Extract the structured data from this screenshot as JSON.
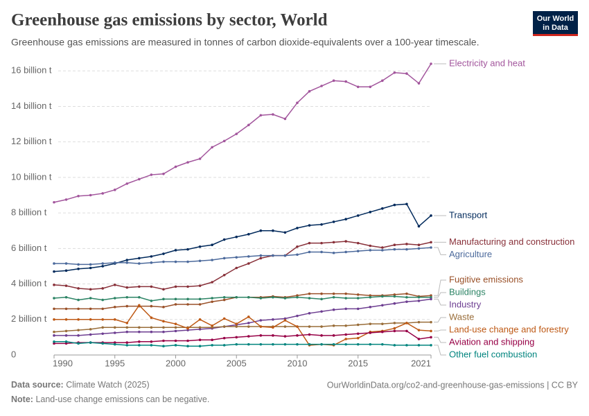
{
  "chart_data": {
    "type": "line",
    "title": "Greenhouse gas emissions by sector, World",
    "subtitle": "Greenhouse gas emissions are measured in tonnes of carbon dioxide-equivalents over a 100-year timescale.",
    "logo": [
      "Our World",
      "in Data"
    ],
    "source_label": "Data source:",
    "source": "Climate Watch (2025)",
    "url": "OurWorldinData.org/co2-and-greenhouse-gas-emissions | CC BY",
    "note_label": "Note:",
    "note": "Land-use change emissions can be negative.",
    "grid": true,
    "x": [
      1990,
      1991,
      1992,
      1993,
      1994,
      1995,
      1996,
      1997,
      1998,
      1999,
      2000,
      2001,
      2002,
      2003,
      2004,
      2005,
      2006,
      2007,
      2008,
      2009,
      2010,
      2011,
      2012,
      2013,
      2014,
      2015,
      2016,
      2017,
      2018,
      2019,
      2020,
      2021
    ],
    "xlim": [
      1990,
      2021
    ],
    "xticks": [
      1990,
      1995,
      2000,
      2005,
      2010,
      2015,
      2021
    ],
    "ylim": [
      0,
      16.4
    ],
    "yticks": [
      0,
      {
        "value": 2,
        "label": "2 billion t"
      },
      {
        "value": 4,
        "label": "4 billion t"
      },
      {
        "value": 6,
        "label": "6 billion t"
      },
      {
        "value": 8,
        "label": "8 billion t"
      },
      {
        "value": 10,
        "label": "10 billion t"
      },
      {
        "value": 12,
        "label": "12 billion t"
      },
      {
        "value": 14,
        "label": "14 billion t"
      },
      {
        "value": 16,
        "label": "16 billion t"
      }
    ],
    "series": [
      {
        "name": "Electricity and heat",
        "color": "#a2559c",
        "values": [
          8.6,
          8.75,
          8.95,
          9.0,
          9.1,
          9.3,
          9.65,
          9.9,
          10.15,
          10.2,
          10.6,
          10.85,
          11.05,
          11.7,
          12.05,
          12.45,
          12.95,
          13.5,
          13.55,
          13.3,
          14.2,
          14.85,
          15.15,
          15.45,
          15.4,
          15.1,
          15.1,
          15.45,
          15.9,
          15.85,
          15.3,
          16.4
        ]
      },
      {
        "name": "Transport",
        "color": "#00295b",
        "values": [
          4.7,
          4.75,
          4.85,
          4.9,
          5.0,
          5.15,
          5.35,
          5.45,
          5.55,
          5.7,
          5.9,
          5.95,
          6.1,
          6.2,
          6.5,
          6.65,
          6.8,
          7.0,
          7.0,
          6.9,
          7.15,
          7.3,
          7.35,
          7.5,
          7.65,
          7.85,
          8.05,
          8.25,
          8.45,
          8.5,
          7.25,
          7.85
        ]
      },
      {
        "name": "Manufacturing and construction",
        "color": "#883039",
        "values": [
          3.95,
          3.9,
          3.75,
          3.7,
          3.75,
          3.95,
          3.8,
          3.85,
          3.85,
          3.7,
          3.85,
          3.85,
          3.9,
          4.1,
          4.5,
          4.9,
          5.15,
          5.45,
          5.6,
          5.6,
          6.1,
          6.3,
          6.3,
          6.35,
          6.4,
          6.3,
          6.15,
          6.05,
          6.2,
          6.25,
          6.2,
          6.35
        ]
      },
      {
        "name": "Agriculture",
        "color": "#4c6a9c",
        "values": [
          5.15,
          5.15,
          5.1,
          5.1,
          5.15,
          5.2,
          5.2,
          5.15,
          5.2,
          5.25,
          5.25,
          5.25,
          5.3,
          5.35,
          5.45,
          5.5,
          5.55,
          5.6,
          5.6,
          5.6,
          5.65,
          5.8,
          5.8,
          5.75,
          5.8,
          5.85,
          5.9,
          5.9,
          5.95,
          5.95,
          6.0,
          6.05
        ]
      },
      {
        "name": "Fugitive emissions",
        "color": "#9a5129",
        "values": [
          2.6,
          2.6,
          2.6,
          2.6,
          2.6,
          2.7,
          2.75,
          2.75,
          2.75,
          2.7,
          2.85,
          2.85,
          2.85,
          3.0,
          3.1,
          3.25,
          3.25,
          3.25,
          3.3,
          3.25,
          3.35,
          3.45,
          3.45,
          3.45,
          3.45,
          3.4,
          3.35,
          3.35,
          3.4,
          3.45,
          3.3,
          3.35
        ]
      },
      {
        "name": "Buildings",
        "color": "#2c8465",
        "values": [
          3.2,
          3.25,
          3.1,
          3.2,
          3.1,
          3.2,
          3.25,
          3.25,
          3.05,
          3.15,
          3.15,
          3.15,
          3.15,
          3.2,
          3.25,
          3.25,
          3.25,
          3.2,
          3.25,
          3.2,
          3.25,
          3.2,
          3.15,
          3.25,
          3.2,
          3.2,
          3.25,
          3.3,
          3.3,
          3.25,
          3.25,
          3.25
        ]
      },
      {
        "name": "Industry",
        "color": "#6d3e91",
        "values": [
          1.1,
          1.1,
          1.1,
          1.15,
          1.2,
          1.25,
          1.3,
          1.3,
          1.3,
          1.3,
          1.35,
          1.4,
          1.45,
          1.5,
          1.6,
          1.7,
          1.8,
          1.95,
          2.0,
          2.05,
          2.2,
          2.35,
          2.45,
          2.55,
          2.6,
          2.6,
          2.7,
          2.8,
          2.9,
          3.0,
          3.05,
          3.15
        ]
      },
      {
        "name": "Waste",
        "color": "#996d39",
        "values": [
          1.3,
          1.35,
          1.4,
          1.45,
          1.55,
          1.55,
          1.55,
          1.55,
          1.55,
          1.55,
          1.55,
          1.55,
          1.55,
          1.55,
          1.6,
          1.6,
          1.6,
          1.6,
          1.6,
          1.6,
          1.6,
          1.6,
          1.6,
          1.65,
          1.65,
          1.7,
          1.75,
          1.75,
          1.8,
          1.8,
          1.85,
          1.85
        ]
      },
      {
        "name": "Land-use change and forestry",
        "color": "#be5915",
        "values": [
          2.0,
          2.0,
          2.0,
          2.0,
          2.0,
          2.0,
          1.8,
          2.8,
          2.1,
          1.9,
          1.75,
          1.5,
          2.0,
          1.65,
          2.05,
          1.75,
          2.15,
          1.6,
          1.55,
          1.95,
          1.6,
          0.55,
          0.6,
          0.55,
          0.9,
          0.95,
          1.3,
          1.35,
          1.5,
          1.8,
          1.4,
          1.35
        ]
      },
      {
        "name": "Aviation and shipping",
        "color": "#970046",
        "values": [
          0.65,
          0.65,
          0.7,
          0.7,
          0.7,
          0.7,
          0.7,
          0.75,
          0.75,
          0.8,
          0.8,
          0.8,
          0.85,
          0.85,
          0.95,
          1.0,
          1.05,
          1.1,
          1.1,
          1.05,
          1.1,
          1.15,
          1.1,
          1.1,
          1.15,
          1.2,
          1.25,
          1.3,
          1.35,
          1.35,
          0.9,
          1.0
        ]
      },
      {
        "name": "Other fuel combustion",
        "color": "#00847e",
        "values": [
          0.75,
          0.75,
          0.65,
          0.7,
          0.65,
          0.6,
          0.55,
          0.55,
          0.55,
          0.5,
          0.55,
          0.5,
          0.5,
          0.55,
          0.55,
          0.6,
          0.6,
          0.6,
          0.6,
          0.6,
          0.6,
          0.6,
          0.6,
          0.6,
          0.6,
          0.6,
          0.6,
          0.6,
          0.55,
          0.55,
          0.55,
          0.55
        ]
      }
    ]
  }
}
